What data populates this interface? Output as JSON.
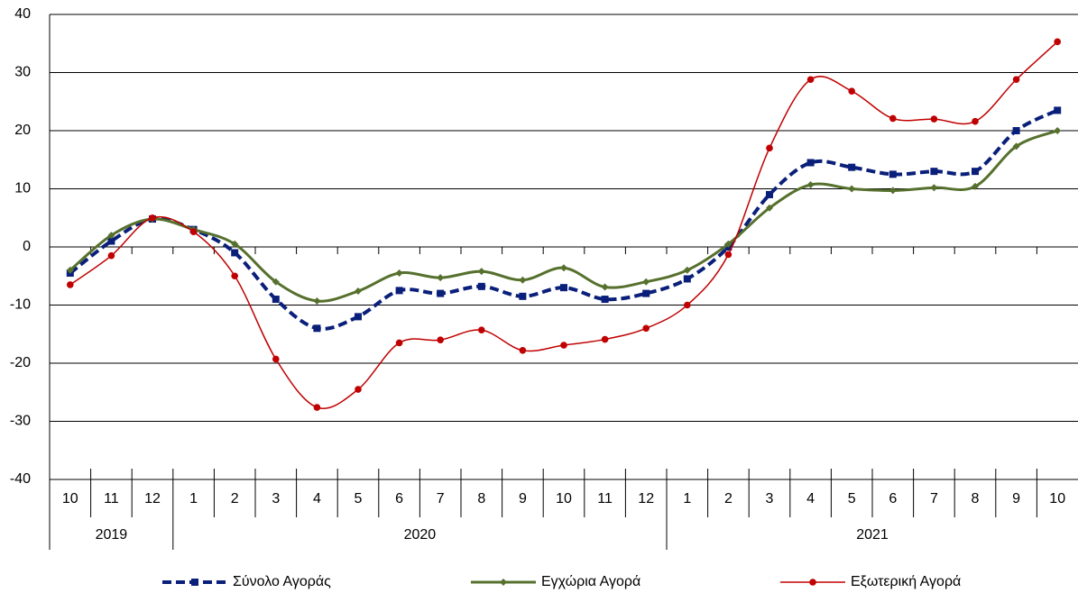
{
  "chart_data": {
    "type": "line",
    "categories": [
      "10",
      "11",
      "12",
      "1",
      "2",
      "3",
      "4",
      "5",
      "6",
      "7",
      "8",
      "9",
      "10",
      "11",
      "12",
      "1",
      "2",
      "3",
      "4",
      "5",
      "6",
      "7",
      "8",
      "9",
      "10"
    ],
    "x_groups": [
      {
        "label": "2019",
        "count": 3
      },
      {
        "label": "2020",
        "count": 12
      },
      {
        "label": "2021",
        "count": 10
      }
    ],
    "series": [
      {
        "name": "Σύνολο Αγοράς",
        "color": "#0a1f7a",
        "width": 4,
        "dash": true,
        "marker": "square",
        "values": [
          -4.5,
          1,
          4.8,
          3,
          -1,
          -9,
          -14,
          -12,
          -7.5,
          -8,
          -6.8,
          -8.5,
          -7,
          -9,
          -8,
          -5.5,
          0,
          9,
          14.5,
          13.7,
          12.5,
          13,
          13,
          20,
          23.5
        ]
      },
      {
        "name": "Εγχώρια Αγορά",
        "color": "#56702d",
        "width": 3,
        "dash": false,
        "marker": "diamond",
        "values": [
          -4,
          2,
          4.8,
          3,
          0.5,
          -6,
          -9.3,
          -7.6,
          -4.5,
          -5.3,
          -4.2,
          -5.7,
          -3.6,
          -6.9,
          -6,
          -4,
          0.5,
          6.7,
          10.7,
          10,
          9.7,
          10.2,
          10.4,
          17.3,
          20
        ]
      },
      {
        "name": "Εξωτερική Αγορά",
        "color": "#c00000",
        "width": 1.5,
        "dash": false,
        "marker": "circle",
        "values": [
          -6.5,
          -1.5,
          5,
          2.6,
          -5,
          -19.3,
          -27.6,
          -24.5,
          -16.5,
          -16,
          -14.3,
          -17.8,
          -16.9,
          -15.9,
          -14,
          -10,
          -1.3,
          17,
          28.8,
          26.8,
          22.1,
          22,
          21.6,
          28.8,
          35.3
        ]
      }
    ],
    "ylim": [
      -40,
      40
    ],
    "yticks": [
      -40,
      -30,
      -20,
      -10,
      0,
      10,
      20,
      30,
      40
    ],
    "grid": true
  }
}
